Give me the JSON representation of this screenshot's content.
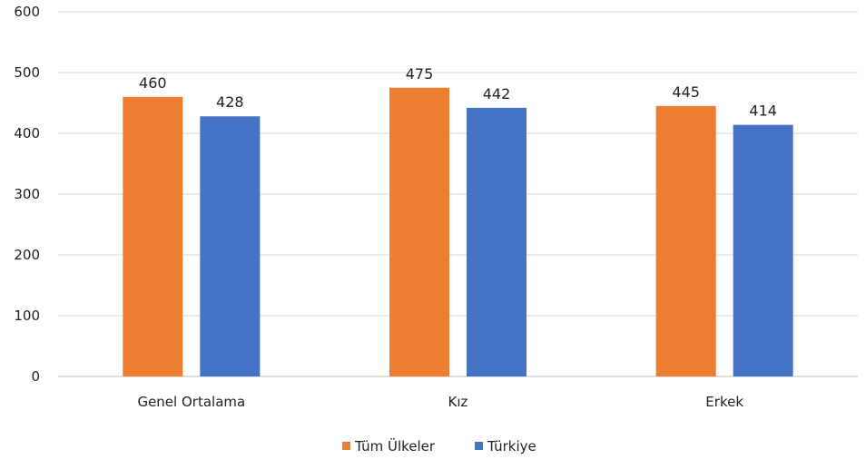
{
  "chart_data": {
    "type": "bar",
    "categories": [
      "Genel Ortalama",
      "Kız",
      "Erkek"
    ],
    "series": [
      {
        "name": "Tüm Ülkeler",
        "color": "#ED7D31",
        "values": [
          460,
          475,
          445
        ]
      },
      {
        "name": "Türkiye",
        "color": "#4472C4",
        "values": [
          428,
          442,
          414
        ]
      }
    ],
    "ylim": [
      0,
      600
    ],
    "yticks": [
      0,
      100,
      200,
      300,
      400,
      500,
      600
    ],
    "grid": true,
    "legend": "bottom-center"
  }
}
